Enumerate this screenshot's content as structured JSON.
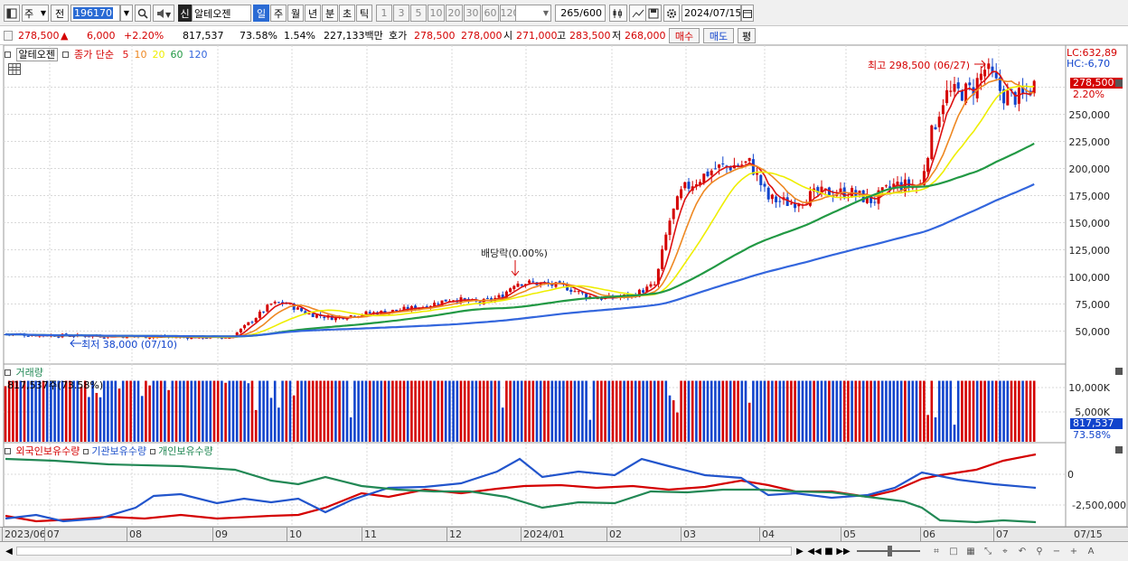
{
  "toolbar": {
    "period_type": "주",
    "prev_label": "전",
    "stock_code": "196170",
    "market_badge": "신",
    "stock_name": "알테오젠",
    "periods": [
      "일",
      "주",
      "월",
      "년",
      "분",
      "초",
      "틱"
    ],
    "active_period": "일",
    "intervals": [
      "1",
      "3",
      "5",
      "10",
      "20",
      "30",
      "60",
      "120"
    ],
    "count_value": "265",
    "count_max": "/600",
    "date_value": "2024/07/15"
  },
  "quote": {
    "price": "278,500",
    "change_arrow": "▲",
    "change": "6,000",
    "change_pct": "+2.20%",
    "volume": "817,537",
    "volume_ratio": "73.58%",
    "turnover_rate": "1.54%",
    "trade_value": "227,133백만",
    "ask_label": "호가",
    "ask_sell": "278,500",
    "ask_buy": "278,000",
    "open_label": "시",
    "open": "271,000",
    "high_label": "고",
    "high": "283,500",
    "low_label": "저",
    "low": "268,000",
    "buy_button": "매수",
    "sell_button": "매도",
    "eval_button": "평"
  },
  "price_panel": {
    "stock_name": "알테오젠",
    "indicator_label": "종가 단순",
    "ma_periods": [
      "5",
      "10",
      "20",
      "60",
      "120"
    ],
    "ma_colors": [
      "#dd1111",
      "#ee8822",
      "#eeee00",
      "#229944",
      "#3366dd"
    ],
    "high_annotation": "최고 298,500 (06/27)",
    "low_annotation": "최저 38,000 (07/10)",
    "dividend_annotation": "배당락(0.00%)",
    "lc_label": "LC:632,89",
    "hc_label": "HC:-6,70",
    "current_price_tag": "278,500",
    "current_pct_tag": "2.20%",
    "y_ticks": [
      "250,000",
      "225,000",
      "200,000",
      "175,000",
      "150,000",
      "125,000",
      "100,000",
      "75,000",
      "50,000"
    ]
  },
  "volume_panel": {
    "title": "거래량",
    "summary": "817,537주(73.58%)",
    "y_ticks": [
      "10,000K",
      "5,000K"
    ],
    "current_tag": "817,537",
    "pct_tag": "73.58%"
  },
  "holdings_panel": {
    "series_labels": [
      "외국인보유수량",
      "기관보유수량",
      "개인보유수량"
    ],
    "series_colors": [
      "#d40000",
      "#2255cc",
      "#228855"
    ],
    "y_ticks": [
      "0",
      "-2,500,000"
    ]
  },
  "x_axis": {
    "labels": [
      "2023/06",
      "07",
      "08",
      "09",
      "10",
      "11",
      "12",
      "2024/01",
      "02",
      "03",
      "04",
      "05",
      "06",
      "07"
    ],
    "right_label": "07/15"
  },
  "colors": {
    "up": "#d40000",
    "down": "#1144cc",
    "selected": "#2a6bd4"
  }
}
